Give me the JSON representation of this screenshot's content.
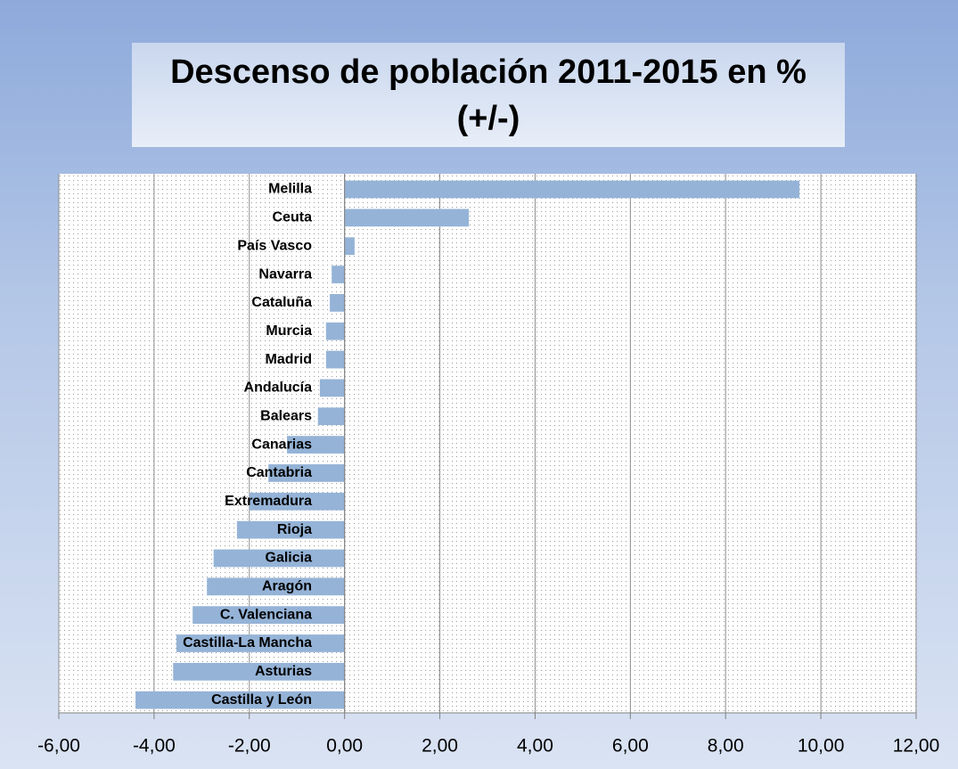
{
  "chart_data": {
    "type": "bar",
    "orientation": "horizontal",
    "title": "Descenso de población 2011-2015 en % (+/-)",
    "categories": [
      "Melilla",
      "Ceuta",
      "País Vasco",
      "Navarra",
      "Cataluña",
      "Murcia",
      "Madrid",
      "Andalucía",
      "Balears",
      "Canarias",
      "Cantabria",
      "Extremadura",
      "Rioja",
      "Galicia",
      "Aragón",
      "C. Valenciana",
      "Castilla-La Mancha",
      "Asturias",
      "Castilla y León"
    ],
    "values": [
      9.55,
      2.61,
      0.21,
      -0.27,
      -0.31,
      -0.39,
      -0.39,
      -0.52,
      -0.56,
      -1.21,
      -1.6,
      -2.0,
      -2.26,
      -2.75,
      -2.89,
      -3.19,
      -3.53,
      -3.6,
      -4.39
    ],
    "color": "#95b3d7",
    "xlim": [
      -6,
      12
    ],
    "xticks": [
      {
        "value": -6,
        "label": "-6,00"
      },
      {
        "value": -4,
        "label": "-4,00"
      },
      {
        "value": -2,
        "label": "-2,00"
      },
      {
        "value": 0,
        "label": "0,00"
      },
      {
        "value": 2,
        "label": "2,00"
      },
      {
        "value": 4,
        "label": "4,00"
      },
      {
        "value": 6,
        "label": "6,00"
      },
      {
        "value": 8,
        "label": "8,00"
      },
      {
        "value": 10,
        "label": "10,00"
      },
      {
        "value": 12,
        "label": "12,00"
      }
    ],
    "grid": true
  }
}
